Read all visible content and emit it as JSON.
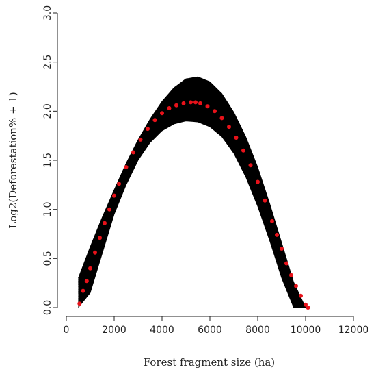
{
  "chart_data": {
    "type": "line",
    "title": "",
    "xlabel": "Forest fragment size (ha)",
    "ylabel": "Log2(Deforestation% + 1)",
    "xlim": [
      0,
      12000
    ],
    "ylim": [
      0,
      3.0
    ],
    "xticks": [
      0,
      2000,
      4000,
      6000,
      8000,
      10000,
      12000
    ],
    "yticks": [
      0.0,
      0.5,
      1.0,
      1.5,
      2.0,
      2.5,
      3.0
    ],
    "grid": false,
    "legend": "none",
    "colors": {
      "band": "#000000",
      "fit": "#e8121a",
      "axis": "#222222"
    },
    "series": [
      {
        "style": "bootstrap-curves-black",
        "x": [
          500,
          1000,
          1500,
          2000,
          2500,
          3000,
          3500,
          4000,
          4500,
          5000,
          5500,
          6000,
          6500,
          7000,
          7500,
          8000,
          8500,
          9000,
          9500,
          10000,
          10200
        ],
        "y_upper": [
          0.3,
          0.62,
          0.92,
          1.2,
          1.47,
          1.71,
          1.92,
          2.1,
          2.24,
          2.33,
          2.35,
          2.3,
          2.18,
          1.99,
          1.74,
          1.43,
          1.06,
          0.66,
          0.26,
          0.0,
          0.0
        ],
        "y_lower": [
          0.0,
          0.15,
          0.55,
          0.95,
          1.25,
          1.5,
          1.68,
          1.8,
          1.87,
          1.9,
          1.89,
          1.84,
          1.74,
          1.57,
          1.33,
          1.03,
          0.68,
          0.3,
          0.0,
          0.0,
          0.0
        ]
      },
      {
        "style": "fitted-red-points",
        "x": [
          550,
          700,
          850,
          1000,
          1200,
          1400,
          1600,
          1800,
          2000,
          2200,
          2500,
          2800,
          3100,
          3400,
          3700,
          4000,
          4300,
          4600,
          4900,
          5200,
          5400,
          5600,
          5900,
          6200,
          6500,
          6800,
          7100,
          7400,
          7700,
          8000,
          8300,
          8600,
          8800,
          9000,
          9200,
          9400,
          9600,
          9800,
          10000,
          10100
        ],
        "y": [
          0.04,
          0.17,
          0.27,
          0.4,
          0.56,
          0.71,
          0.86,
          1.0,
          1.14,
          1.26,
          1.43,
          1.58,
          1.71,
          1.82,
          1.91,
          1.98,
          2.03,
          2.06,
          2.08,
          2.09,
          2.09,
          2.08,
          2.05,
          2.0,
          1.93,
          1.84,
          1.73,
          1.6,
          1.45,
          1.28,
          1.09,
          0.88,
          0.74,
          0.6,
          0.45,
          0.33,
          0.22,
          0.12,
          0.03,
          0.0
        ]
      }
    ]
  }
}
